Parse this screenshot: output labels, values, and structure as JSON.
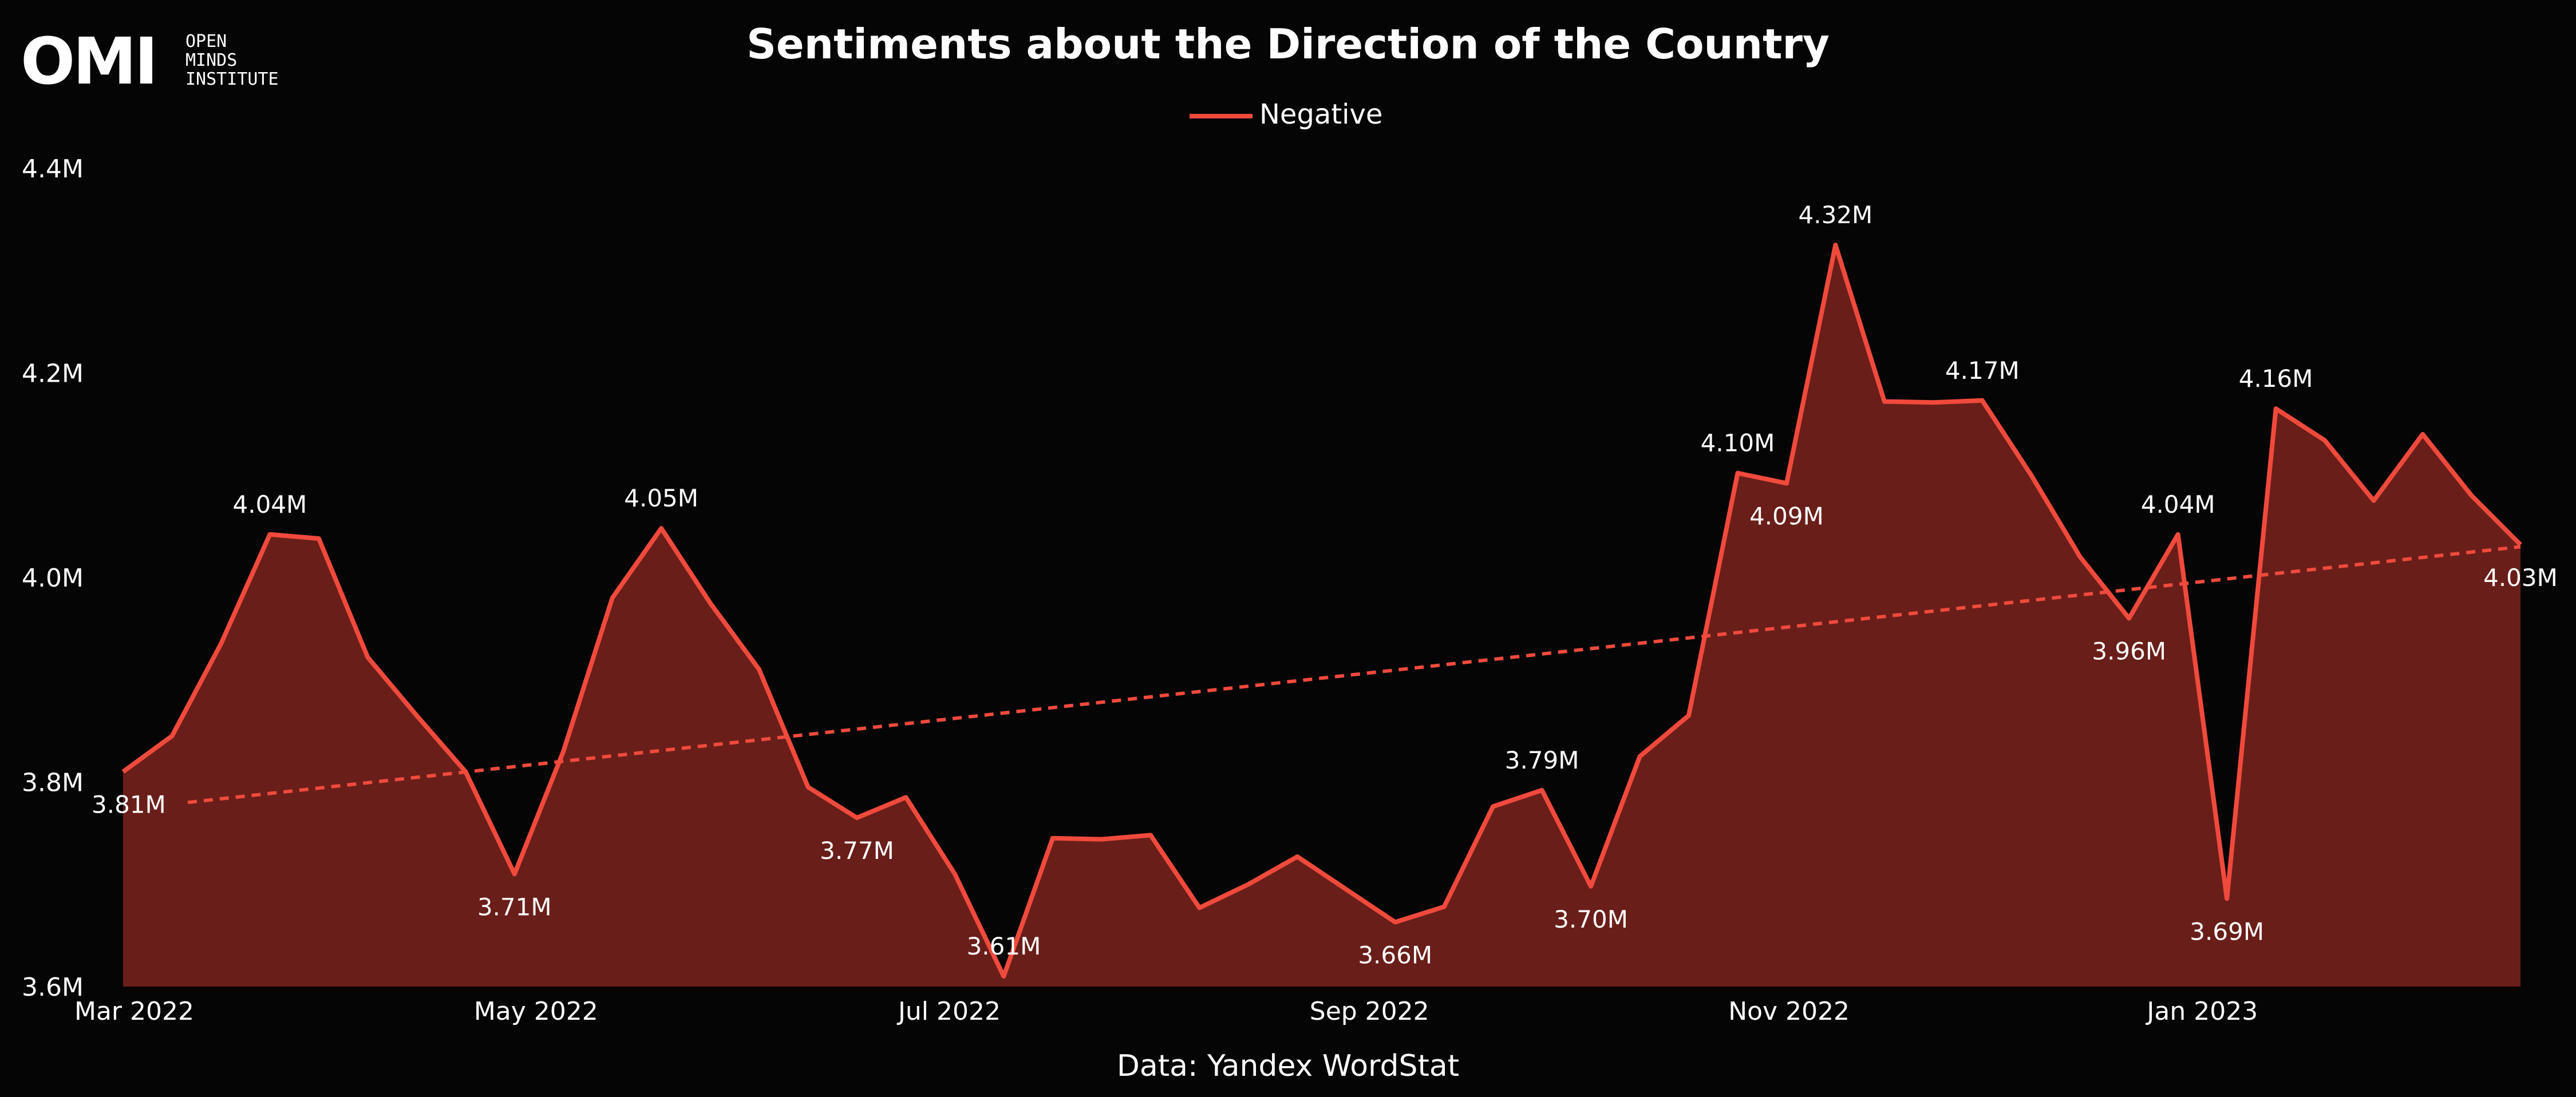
{
  "logo": {
    "mark": "OMI",
    "text_lines": [
      "OPEN",
      "MINDS",
      "INSTITUTE"
    ]
  },
  "colors": {
    "background": "#050505",
    "line": "#f04a3c",
    "fill": "#6a1e19",
    "text": "#ffffff"
  },
  "chart_data": {
    "type": "area",
    "title": "Sentiments about the Direction of the Country",
    "source": "Data: Yandex WordStat",
    "xlabel": "",
    "ylabel": "",
    "legend": "top-center",
    "grid": false,
    "ylim": [
      3.6,
      4.4
    ],
    "y_unit": "M",
    "yticks": [
      {
        "value": 3.6,
        "label": "3.6M"
      },
      {
        "value": 3.8,
        "label": "3.8M"
      },
      {
        "value": 4.0,
        "label": "4.0M"
      },
      {
        "value": 4.2,
        "label": "4.2M"
      },
      {
        "value": 4.4,
        "label": "4.4M"
      }
    ],
    "xlim": [
      0,
      50.57
    ],
    "xticks": [
      {
        "x": 0,
        "label": "Mar 2022"
      },
      {
        "x": 8.71,
        "label": "May 2022"
      },
      {
        "x": 17.43,
        "label": "Jul 2022"
      },
      {
        "x": 26.29,
        "label": "Sep 2022"
      },
      {
        "x": 35.14,
        "label": "Nov 2022"
      },
      {
        "x": 43.86,
        "label": "Jan 2023"
      }
    ],
    "series": [
      {
        "name": "Negative",
        "x_unit": "weeks since start of Mar 2022",
        "values": [
          3.81,
          3.845,
          3.935,
          4.042,
          4.038,
          3.922,
          3.865,
          3.81,
          3.71,
          3.83,
          3.98,
          4.048,
          3.975,
          3.91,
          3.795,
          3.765,
          3.785,
          3.71,
          3.61,
          3.745,
          3.744,
          3.748,
          3.677,
          3.7,
          3.727,
          3.695,
          3.663,
          3.678,
          3.776,
          3.792,
          3.698,
          3.825,
          3.865,
          4.102,
          4.092,
          4.325,
          4.172,
          4.171,
          4.173,
          4.1,
          4.02,
          3.96,
          4.042,
          3.686,
          4.165,
          4.134,
          4.075,
          4.14,
          4.08,
          4.032
        ]
      }
    ],
    "trendline": {
      "style": "dashed",
      "start": 3.78,
      "end": 4.03
    },
    "annotations": [
      {
        "index": 0,
        "label": "3.81M",
        "pos": "below"
      },
      {
        "index": 3,
        "label": "4.04M",
        "pos": "above"
      },
      {
        "index": 8,
        "label": "3.71M",
        "pos": "below"
      },
      {
        "index": 11,
        "label": "4.05M",
        "pos": "above"
      },
      {
        "index": 15,
        "label": "3.77M",
        "pos": "below"
      },
      {
        "index": 18,
        "label": "3.61M",
        "pos": "above"
      },
      {
        "index": 26,
        "label": "3.66M",
        "pos": "below"
      },
      {
        "index": 29,
        "label": "3.79M",
        "pos": "above"
      },
      {
        "index": 30,
        "label": "3.70M",
        "pos": "below"
      },
      {
        "index": 33,
        "label": "4.10M",
        "pos": "above"
      },
      {
        "index": 34,
        "label": "4.09M",
        "pos": "below"
      },
      {
        "index": 35,
        "label": "4.32M",
        "pos": "above"
      },
      {
        "index": 38,
        "label": "4.17M",
        "pos": "above"
      },
      {
        "index": 41,
        "label": "3.96M",
        "pos": "below"
      },
      {
        "index": 42,
        "label": "4.04M",
        "pos": "above"
      },
      {
        "index": 43,
        "label": "3.69M",
        "pos": "below"
      },
      {
        "index": 44,
        "label": "4.16M",
        "pos": "above"
      },
      {
        "index": 49,
        "label": "4.03M",
        "pos": "below"
      }
    ]
  }
}
